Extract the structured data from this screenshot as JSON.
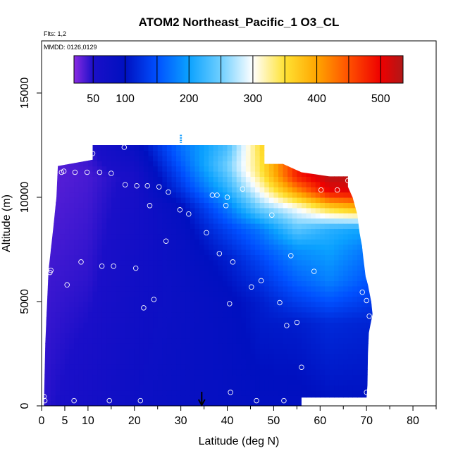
{
  "chart_data": {
    "type": "heatmap",
    "title": "ATOM2 Northeast_Pacific_1 O3_CL",
    "flights_label": "Flts: 1,2",
    "mmdd_label": "MMDD: 0126,0129",
    "xlabel": "Latitude (deg N)",
    "ylabel": "Altitude (m)",
    "xlim": [
      0,
      85
    ],
    "ylim": [
      0,
      17500
    ],
    "x_ticks": [
      0,
      5,
      10,
      20,
      30,
      40,
      50,
      60,
      70,
      80
    ],
    "x_minor_ticks": [
      15,
      25,
      35,
      45,
      55,
      65,
      75,
      85
    ],
    "y_ticks": [
      0,
      5000,
      10000,
      15000
    ],
    "colorbar": {
      "range": [
        20,
        535
      ],
      "tick_values": [
        50,
        100,
        200,
        300,
        400,
        500
      ],
      "tick_labels": [
        "50",
        "100",
        "200",
        "300",
        "400",
        "500"
      ],
      "boundaries": [
        50,
        100,
        150,
        200,
        250,
        300,
        350,
        400,
        450,
        500
      ],
      "color_stops": [
        {
          "v": 20,
          "c": "#8a2be2"
        },
        {
          "v": 50,
          "c": "#1a0fc8"
        },
        {
          "v": 100,
          "c": "#0010c0"
        },
        {
          "v": 150,
          "c": "#0050ff"
        },
        {
          "v": 200,
          "c": "#0ba2ff"
        },
        {
          "v": 250,
          "c": "#6fcfff"
        },
        {
          "v": 300,
          "c": "#ffffff"
        },
        {
          "v": 350,
          "c": "#ffe233"
        },
        {
          "v": 400,
          "c": "#ffa500"
        },
        {
          "v": 450,
          "c": "#ff5000"
        },
        {
          "v": 500,
          "c": "#ee0000"
        },
        {
          "v": 535,
          "c": "#b01818"
        }
      ]
    },
    "field_outline": [
      [
        0.5,
        0
      ],
      [
        0.8,
        3000
      ],
      [
        1.2,
        5000
      ],
      [
        1.5,
        6500
      ],
      [
        2.5,
        8500
      ],
      [
        3.2,
        10000
      ],
      [
        3.5,
        11500
      ],
      [
        11,
        11800
      ],
      [
        11,
        12500
      ],
      [
        48,
        12500
      ],
      [
        48,
        11600
      ],
      [
        52,
        11600
      ],
      [
        56,
        11200
      ],
      [
        59,
        11100
      ],
      [
        62,
        11000
      ],
      [
        66,
        11000
      ],
      [
        66,
        10500
      ],
      [
        67,
        10000
      ],
      [
        68,
        9200
      ],
      [
        68.5,
        8300
      ],
      [
        69,
        7700
      ],
      [
        69.3,
        7100
      ],
      [
        69.8,
        6200
      ],
      [
        70.3,
        5800
      ],
      [
        71,
        5000
      ],
      [
        71.3,
        4400
      ],
      [
        70.5,
        3500
      ],
      [
        70.3,
        2500
      ],
      [
        70.2,
        1000
      ],
      [
        70,
        400
      ],
      [
        56,
        400
      ],
      [
        56,
        0
      ]
    ],
    "field_knots": [
      {
        "lat": 0,
        "levels": [
          [
            0,
            45
          ],
          [
            6000,
            40
          ],
          [
            11000,
            32
          ]
        ]
      },
      {
        "lat": 10,
        "levels": [
          [
            0,
            60
          ],
          [
            6000,
            45
          ],
          [
            11000,
            38
          ],
          [
            12500,
            45
          ]
        ]
      },
      {
        "lat": 20,
        "levels": [
          [
            0,
            75
          ],
          [
            5000,
            68
          ],
          [
            9000,
            60
          ],
          [
            11000,
            55
          ],
          [
            12500,
            85
          ]
        ]
      },
      {
        "lat": 30,
        "levels": [
          [
            0,
            85
          ],
          [
            5000,
            80
          ],
          [
            8000,
            85
          ],
          [
            9500,
            95
          ],
          [
            10500,
            130
          ],
          [
            11800,
            160
          ],
          [
            12500,
            170
          ]
        ]
      },
      {
        "lat": 40,
        "levels": [
          [
            0,
            90
          ],
          [
            5000,
            95
          ],
          [
            7000,
            110
          ],
          [
            8500,
            140
          ],
          [
            9500,
            175
          ],
          [
            10500,
            220
          ],
          [
            11500,
            250
          ],
          [
            12500,
            230
          ]
        ]
      },
      {
        "lat": 47,
        "levels": [
          [
            0,
            95
          ],
          [
            5000,
            110
          ],
          [
            7000,
            140
          ],
          [
            8500,
            175
          ],
          [
            9500,
            250
          ],
          [
            10500,
            310
          ],
          [
            11200,
            340
          ],
          [
            12500,
            350
          ]
        ]
      },
      {
        "lat": 55,
        "levels": [
          [
            0,
            95
          ],
          [
            4000,
            110
          ],
          [
            6000,
            160
          ],
          [
            7500,
            190
          ],
          [
            8500,
            240
          ],
          [
            9500,
            300
          ],
          [
            10300,
            410
          ],
          [
            11000,
            480
          ]
        ]
      },
      {
        "lat": 62,
        "levels": [
          [
            0,
            100
          ],
          [
            4000,
            120
          ],
          [
            6000,
            180
          ],
          [
            7500,
            200
          ],
          [
            8500,
            215
          ],
          [
            9500,
            360
          ],
          [
            10300,
            500
          ],
          [
            11000,
            530
          ]
        ]
      },
      {
        "lat": 71,
        "levels": [
          [
            0,
            100
          ],
          [
            4000,
            115
          ],
          [
            6000,
            150
          ],
          [
            7500,
            170
          ],
          [
            8500,
            200
          ],
          [
            9500,
            400
          ],
          [
            10300,
            510
          ],
          [
            11000,
            530
          ]
        ]
      }
    ],
    "sample_points": [
      [
        0.7,
        250
      ],
      [
        0.5,
        450
      ],
      [
        1.8,
        6400
      ],
      [
        2.0,
        6500
      ],
      [
        5.5,
        5800
      ],
      [
        8.5,
        6900
      ],
      [
        7.0,
        250
      ],
      [
        4.3,
        11200
      ],
      [
        4.8,
        11250
      ],
      [
        7.2,
        11200
      ],
      [
        9.8,
        11200
      ],
      [
        11.0,
        12100
      ],
      [
        12.5,
        11200
      ],
      [
        15.0,
        11150
      ],
      [
        17.8,
        12400
      ],
      [
        13.0,
        6700
      ],
      [
        15.5,
        6700
      ],
      [
        20.3,
        6600
      ],
      [
        14.6,
        250
      ],
      [
        21.3,
        250
      ],
      [
        22.0,
        4700
      ],
      [
        24.2,
        5100
      ],
      [
        18.0,
        10600
      ],
      [
        20.5,
        10550
      ],
      [
        22.8,
        10550
      ],
      [
        25.3,
        10500
      ],
      [
        27.3,
        10250
      ],
      [
        23.3,
        9600
      ],
      [
        29.8,
        9400
      ],
      [
        31.7,
        9200
      ],
      [
        26.8,
        7900
      ],
      [
        35.5,
        8300
      ],
      [
        38.3,
        7300
      ],
      [
        36.8,
        10100
      ],
      [
        37.8,
        10100
      ],
      [
        39.7,
        9600
      ],
      [
        40.0,
        10000
      ],
      [
        43.3,
        10400
      ],
      [
        41.2,
        6900
      ],
      [
        40.5,
        4900
      ],
      [
        40.7,
        650
      ],
      [
        45.2,
        5700
      ],
      [
        47.3,
        6000
      ],
      [
        49.6,
        9150
      ],
      [
        46.3,
        250
      ],
      [
        52.2,
        250
      ],
      [
        51.3,
        4950
      ],
      [
        52.8,
        3850
      ],
      [
        55.0,
        4000
      ],
      [
        56.0,
        1850
      ],
      [
        56.7,
        250
      ],
      [
        53.7,
        7200
      ],
      [
        58.7,
        6450
      ],
      [
        60.2,
        10350
      ],
      [
        63.7,
        10350
      ],
      [
        66.0,
        10800
      ],
      [
        69.1,
        5450
      ],
      [
        70.0,
        5050
      ],
      [
        70.6,
        4300
      ],
      [
        70.0,
        650
      ]
    ],
    "blue_marker": {
      "x": 30,
      "y_range": [
        12600,
        13000
      ]
    },
    "arrow_marker_x": 34.5
  }
}
